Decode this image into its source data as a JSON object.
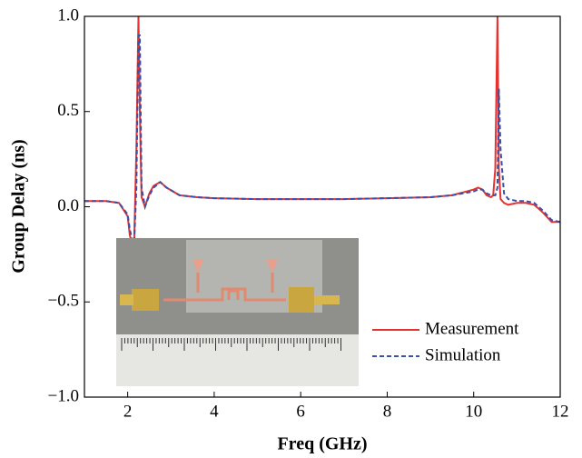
{
  "chart_data": {
    "type": "line",
    "x_label": "Freq (GHz)",
    "y_label": "Group Delay (ns)",
    "x": [
      1,
      1.5,
      1.8,
      2.0,
      2.05,
      2.1,
      2.15,
      2.2,
      2.25,
      2.28,
      2.32,
      2.4,
      2.5,
      2.6,
      2.75,
      2.9,
      3.2,
      3.6,
      4,
      5,
      6,
      7,
      8,
      9,
      9.5,
      10,
      10.1,
      10.2,
      10.3,
      10.4,
      10.45,
      10.5,
      10.55,
      10.58,
      10.62,
      10.7,
      10.8,
      11,
      11.2,
      11.4,
      11.6,
      11.8,
      12
    ],
    "series": [
      {
        "name": "Measurement",
        "color": "#e8322f",
        "dash": false,
        "values": [
          0.03,
          0.03,
          0.02,
          -0.05,
          -0.15,
          -0.2,
          -0.18,
          0.3,
          1.0,
          0.5,
          0.05,
          0.0,
          0.07,
          0.11,
          0.13,
          0.1,
          0.06,
          0.05,
          0.045,
          0.04,
          0.04,
          0.04,
          0.045,
          0.05,
          0.06,
          0.09,
          0.1,
          0.09,
          0.06,
          0.05,
          0.06,
          0.2,
          1.0,
          0.2,
          0.04,
          0.02,
          0.01,
          0.02,
          0.02,
          0.01,
          -0.03,
          -0.08,
          -0.08
        ]
      },
      {
        "name": "Simulation",
        "color": "#3b4fa8",
        "dash": true,
        "values": [
          0.03,
          0.03,
          0.02,
          -0.04,
          -0.12,
          -0.17,
          -0.19,
          0.1,
          0.9,
          0.9,
          0.1,
          0.0,
          0.06,
          0.1,
          0.13,
          0.1,
          0.06,
          0.05,
          0.045,
          0.04,
          0.04,
          0.04,
          0.045,
          0.05,
          0.06,
          0.08,
          0.09,
          0.09,
          0.07,
          0.06,
          0.06,
          0.06,
          0.1,
          0.62,
          0.3,
          0.07,
          0.04,
          0.03,
          0.03,
          0.02,
          -0.02,
          -0.07,
          -0.08
        ]
      }
    ],
    "xlim": [
      1,
      12
    ],
    "xticks": [
      2,
      4,
      6,
      8,
      10,
      12
    ],
    "ylim": [
      -1,
      1
    ],
    "yticks": [
      {
        "value": -1,
        "label": "−1.0"
      },
      {
        "value": -0.5,
        "label": "−0.5"
      },
      {
        "value": 0,
        "label": "0.0"
      },
      {
        "value": 0.5,
        "label": "0.5"
      },
      {
        "value": 1,
        "label": "1.0"
      }
    ],
    "grid": false,
    "legend": "lower right"
  }
}
